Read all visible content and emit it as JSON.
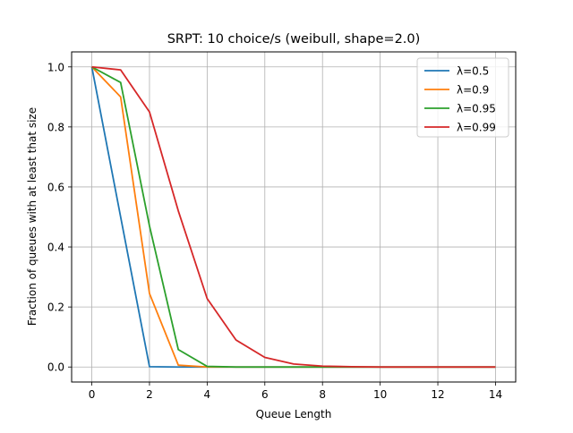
{
  "chart_data": {
    "type": "line",
    "title": "SRPT: 10 choice/s (weibull, shape=2.0)",
    "xlabel": "Queue Length",
    "ylabel": "Fraction of queues with at least that size",
    "xlim": [
      -0.7,
      14.7
    ],
    "ylim": [
      -0.05,
      1.05
    ],
    "xticks": [
      0,
      2,
      4,
      6,
      8,
      10,
      12,
      14
    ],
    "yticks": [
      0.0,
      0.2,
      0.4,
      0.6,
      0.8,
      1.0
    ],
    "xtick_labels": [
      "0",
      "2",
      "4",
      "6",
      "8",
      "10",
      "12",
      "14"
    ],
    "ytick_labels": [
      "0.0",
      "0.2",
      "0.4",
      "0.6",
      "0.8",
      "1.0"
    ],
    "grid": true,
    "legend_position": "top-right",
    "x": [
      0,
      1,
      2,
      3,
      4,
      5,
      6,
      7,
      8,
      9,
      10,
      11,
      12,
      13,
      14
    ],
    "series": [
      {
        "name": "λ=0.5",
        "color": "#1f77b4",
        "values": [
          1.0,
          0.5,
          0.001,
          0.0,
          0.0,
          0.0,
          0.0,
          0.0,
          0.0,
          0.0,
          0.0,
          0.0,
          0.0,
          0.0,
          0.0
        ]
      },
      {
        "name": "λ=0.9",
        "color": "#ff7f0e",
        "values": [
          1.0,
          0.9,
          0.245,
          0.006,
          0.0,
          0.0,
          0.0,
          0.0,
          0.0,
          0.0,
          0.0,
          0.0,
          0.0,
          0.0,
          0.0
        ]
      },
      {
        "name": "λ=0.95",
        "color": "#2ca02c",
        "values": [
          1.0,
          0.948,
          0.47,
          0.058,
          0.002,
          0.0,
          0.0,
          0.0,
          0.0,
          0.0,
          0.0,
          0.0,
          0.0,
          0.0,
          0.0
        ]
      },
      {
        "name": "λ=0.99",
        "color": "#d62728",
        "values": [
          1.0,
          0.99,
          0.85,
          0.52,
          0.228,
          0.09,
          0.032,
          0.01,
          0.003,
          0.001,
          0.0,
          0.0,
          0.0,
          0.0,
          0.0
        ]
      }
    ]
  }
}
